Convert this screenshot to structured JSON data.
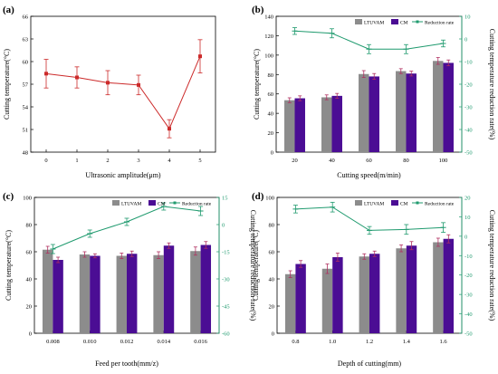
{
  "colors": {
    "ltuvam": "#8c8c8c",
    "cm": "#4b0d94",
    "rate": "#1f9a6e",
    "line_a": "#cc2a2a",
    "axis": "#000000"
  },
  "chart_data": [
    {
      "id": "a",
      "panel_label": "(a)",
      "type": "line",
      "xlabel": "Ultrasonic amplitude(μm)",
      "ylabel": "Cutting temperature(°C)",
      "x": [
        0,
        1,
        2,
        3,
        4,
        5
      ],
      "categories": [
        "0",
        "1",
        "2",
        "3",
        "4",
        "5"
      ],
      "values": [
        58.4,
        57.9,
        57.2,
        56.9,
        51.1,
        60.7
      ],
      "errors": [
        1.9,
        1.4,
        1.6,
        1.3,
        1.2,
        2.2
      ],
      "ylim": [
        48,
        66
      ],
      "yticks": [
        "48",
        "51",
        "54",
        "57",
        "60",
        "63",
        "66"
      ],
      "grid": false
    },
    {
      "id": "b",
      "panel_label": "(b)",
      "type": "bar",
      "xlabel": "Cutting speed(m/min)",
      "ylabel": "Cutting temperature(°C)",
      "ylabel_right": "Cutting temperature reduction rate(%)",
      "categories": [
        "20",
        "40",
        "60",
        "80",
        "100"
      ],
      "ylim": [
        0,
        140
      ],
      "yticks": [
        "0",
        "20",
        "40",
        "60",
        "80",
        "100",
        "120",
        "140"
      ],
      "y2lim": [
        -50,
        10
      ],
      "y2ticks": [
        "-50",
        "-40",
        "-30",
        "-20",
        "-10",
        "0",
        "10"
      ],
      "legend": {
        "placement": "top-right",
        "entries": [
          "LTUVAM",
          "CM",
          "Reduction rate"
        ]
      },
      "series": [
        {
          "name": "LTUVAM",
          "values": [
            53.5,
            56.5,
            80.5,
            83.5,
            94
          ],
          "errors": [
            2.5,
            2.5,
            3.5,
            2.5,
            3.5
          ]
        },
        {
          "name": "CM",
          "values": [
            55.5,
            58,
            78,
            81,
            92
          ],
          "errors": [
            2.5,
            2.5,
            3,
            2.5,
            3
          ]
        },
        {
          "name": "Reduction rate",
          "axis": "right",
          "values": [
            3.5,
            2.5,
            -4.5,
            -4.5,
            -2
          ],
          "errors": [
            1.5,
            2,
            2,
            2,
            1.5
          ]
        }
      ]
    },
    {
      "id": "c",
      "panel_label": "(c)",
      "type": "bar",
      "xlabel": "Feed per tooth(mm/z)",
      "ylabel": "Cutting temperature(°C)",
      "ylabel_right": "Cutting temperature reduction rate(%)",
      "categories": [
        "0.008",
        "0.010",
        "0.012",
        "0.014",
        "0.016"
      ],
      "ylim": [
        0,
        100
      ],
      "yticks": [
        "0",
        "20",
        "40",
        "60",
        "80",
        "100"
      ],
      "y2lim": [
        -60,
        15
      ],
      "y2ticks": [
        "-60",
        "-45",
        "-30",
        "-15",
        "0",
        "15"
      ],
      "legend": {
        "placement": "top-right",
        "entries": [
          "LTUVAM",
          "CM",
          "Reduction rate"
        ]
      },
      "series": [
        {
          "name": "LTUVAM",
          "values": [
            61.5,
            58,
            57,
            57.5,
            60.5
          ],
          "errors": [
            2.5,
            2,
            2,
            2.5,
            3
          ]
        },
        {
          "name": "CM",
          "values": [
            54,
            57,
            58.5,
            64.5,
            65
          ],
          "errors": [
            2,
            1.5,
            2,
            2,
            2.5
          ]
        },
        {
          "name": "Reduction rate",
          "axis": "right",
          "values": [
            -13.5,
            -5,
            1.5,
            10,
            7.5
          ],
          "errors": [
            2.5,
            2,
            2,
            2,
            2.5
          ]
        }
      ]
    },
    {
      "id": "d",
      "panel_label": "(d)",
      "type": "bar",
      "xlabel": "Depth of cutting(mm)",
      "ylabel": "Cutting temperature(°C)",
      "ylabel_right": "Cutting temperature reduction rate(%)",
      "categories": [
        "0.8",
        "1.0",
        "1.2",
        "1.4",
        "1.6"
      ],
      "ylim": [
        0,
        100
      ],
      "yticks": [
        "0",
        "20",
        "40",
        "60",
        "80",
        "100"
      ],
      "y2lim": [
        -50,
        20
      ],
      "y2ticks": [
        "-50",
        "-40",
        "-30",
        "-20",
        "-10",
        "0",
        "10",
        "20"
      ],
      "legend": {
        "placement": "top-right",
        "entries": [
          "LTUVAM",
          "CM",
          "Reduction rate"
        ]
      },
      "series": [
        {
          "name": "LTUVAM",
          "values": [
            43.5,
            47.5,
            56.5,
            62.5,
            67
          ],
          "errors": [
            2.5,
            3.5,
            2,
            2.5,
            3
          ]
        },
        {
          "name": "CM",
          "values": [
            51,
            56,
            58.5,
            64.5,
            69.5
          ],
          "errors": [
            2.5,
            3,
            2,
            3,
            3
          ]
        },
        {
          "name": "Reduction rate",
          "axis": "right",
          "values": [
            14,
            15,
            3,
            3.5,
            4.5
          ],
          "errors": [
            2,
            2.5,
            2,
            2.5,
            2.5
          ]
        }
      ]
    }
  ]
}
